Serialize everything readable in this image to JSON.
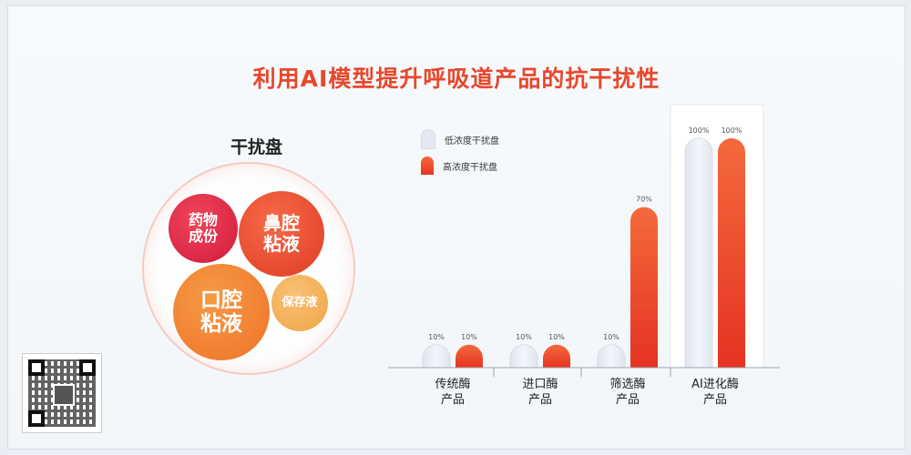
{
  "title": "利用AI模型提升呼吸道产品的抗干扰性",
  "interference": {
    "label": "干扰盘",
    "bubbles": [
      {
        "text": "药物\n成份",
        "color": "#d9213f"
      },
      {
        "text": "鼻腔\n粘液",
        "color": "#e64a2b"
      },
      {
        "text": "口腔\n粘液",
        "color": "#f07a2f"
      },
      {
        "text": "保存液",
        "color": "#f2ad55"
      }
    ]
  },
  "colors": {
    "low": "#e4e9f1",
    "high": "#ef4a28",
    "accent": "#e8472c"
  },
  "chart_data": {
    "type": "bar",
    "title": "",
    "xlabel": "",
    "ylabel": "",
    "ylim": [
      0,
      100
    ],
    "categories": [
      "传统酶\n产品",
      "进口酶\n产品",
      "筛选酶\n产品",
      "AI进化酶\n产品"
    ],
    "series": [
      {
        "name": "低浓度干扰盘",
        "values": [
          10,
          10,
          10,
          100
        ],
        "labels": [
          "10%",
          "10%",
          "10%",
          "100%"
        ]
      },
      {
        "name": "高浓度干扰盘",
        "values": [
          10,
          10,
          70,
          100
        ],
        "labels": [
          "10%",
          "10%",
          "70%",
          "100%"
        ]
      }
    ],
    "highlight_category": "AI进化酶\n产品",
    "grid": false,
    "legend": "top-left"
  }
}
